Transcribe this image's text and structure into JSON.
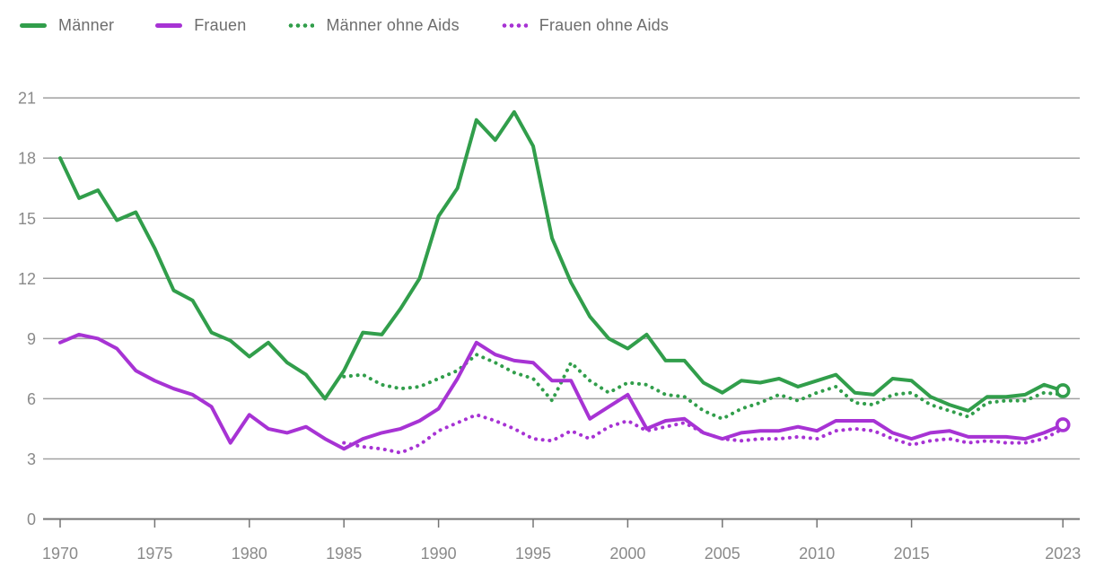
{
  "legend": {
    "items": [
      {
        "label": "Männer",
        "color": "#319e4b",
        "style": "solid",
        "swatch_icon": "solid-line-swatch"
      },
      {
        "label": "Frauen",
        "color": "#a733d4",
        "style": "solid",
        "swatch_icon": "solid-line-swatch"
      },
      {
        "label": "Männer ohne Aids",
        "color": "#319e4b",
        "style": "dotted",
        "swatch_icon": "dotted-line-swatch"
      },
      {
        "label": "Frauen ohne Aids",
        "color": "#a733d4",
        "style": "dotted",
        "swatch_icon": "dotted-line-swatch"
      }
    ]
  },
  "colors": {
    "green": "#319e4b",
    "purple": "#a733d4",
    "gridline": "#a1a1a1",
    "axis_line": "#757575",
    "tick_label": "#8a8a8a",
    "legend_text": "#6d6d6d",
    "background": "#ffffff"
  },
  "chart_data": {
    "type": "line",
    "title": "",
    "xlabel": "",
    "ylabel": "",
    "xlim": [
      1970,
      2023
    ],
    "ylim": [
      0,
      21.5
    ],
    "grid": true,
    "legend_position": "top-left",
    "x_ticks": [
      1970,
      1975,
      1980,
      1985,
      1990,
      1995,
      2000,
      2005,
      2010,
      2015,
      2023
    ],
    "y_ticks": [
      0,
      3,
      6,
      9,
      12,
      15,
      18,
      21
    ],
    "series": [
      {
        "name": "Männer",
        "color": "#319e4b",
        "style": "solid",
        "start_year": 1970,
        "end_marker": true,
        "values": [
          18,
          16,
          16.4,
          14.9,
          15.3,
          13.5,
          11.4,
          10.9,
          9.3,
          8.9,
          8.1,
          8.8,
          7.8,
          7.2,
          6,
          7.4,
          9.3,
          9.2,
          10.5,
          12,
          15.1,
          16.5,
          19.9,
          18.9,
          20.3,
          18.6,
          14,
          11.8,
          10.1,
          9,
          8.5,
          9.2,
          7.9,
          7.9,
          6.8,
          6.3,
          6.9,
          6.8,
          7,
          6.6,
          6.9,
          7.2,
          6.3,
          6.2,
          7,
          6.9,
          6.1,
          5.7,
          5.4,
          6.1,
          6.1,
          6.2,
          6.7,
          6.4
        ]
      },
      {
        "name": "Frauen",
        "color": "#a733d4",
        "style": "solid",
        "start_year": 1970,
        "end_marker": true,
        "values": [
          8.8,
          9.2,
          9,
          8.5,
          7.4,
          6.9,
          6.5,
          6.2,
          5.6,
          3.8,
          5.2,
          4.5,
          4.3,
          4.6,
          4,
          3.5,
          4,
          4.3,
          4.5,
          4.9,
          5.5,
          7,
          8.8,
          8.2,
          7.9,
          7.8,
          6.9,
          6.9,
          5,
          5.6,
          6.2,
          4.5,
          4.9,
          5,
          4.3,
          4,
          4.3,
          4.4,
          4.4,
          4.6,
          4.4,
          4.9,
          4.9,
          4.9,
          4.3,
          4,
          4.3,
          4.4,
          4.1,
          4.1,
          4.1,
          4,
          4.3,
          4.7
        ]
      },
      {
        "name": "Männer ohne Aids",
        "color": "#319e4b",
        "style": "dotted",
        "start_year": 1985,
        "end_marker": false,
        "values": [
          7.1,
          7.2,
          6.7,
          6.5,
          6.6,
          7,
          7.4,
          8.2,
          7.8,
          7.3,
          7,
          5.9,
          7.8,
          6.9,
          6.3,
          6.8,
          6.7,
          6.2,
          6.1,
          5.4,
          5,
          5.5,
          5.8,
          6.2,
          5.9,
          6.3,
          6.6,
          5.8,
          5.7,
          6.2,
          6.3,
          5.7,
          5.4,
          5.1,
          5.8,
          5.9,
          5.9,
          6.3,
          6.2
        ]
      },
      {
        "name": "Frauen ohne Aids",
        "color": "#a733d4",
        "style": "dotted",
        "start_year": 1985,
        "end_marker": false,
        "values": [
          3.8,
          3.6,
          3.5,
          3.3,
          3.7,
          4.4,
          4.8,
          5.2,
          4.9,
          4.5,
          4,
          3.9,
          4.4,
          4,
          4.6,
          4.9,
          4.4,
          4.6,
          4.8,
          4.3,
          4,
          3.9,
          4,
          4,
          4.1,
          4,
          4.4,
          4.5,
          4.4,
          4,
          3.7,
          3.9,
          4,
          3.8,
          3.9,
          3.8,
          3.8,
          4,
          4.5
        ]
      }
    ]
  }
}
